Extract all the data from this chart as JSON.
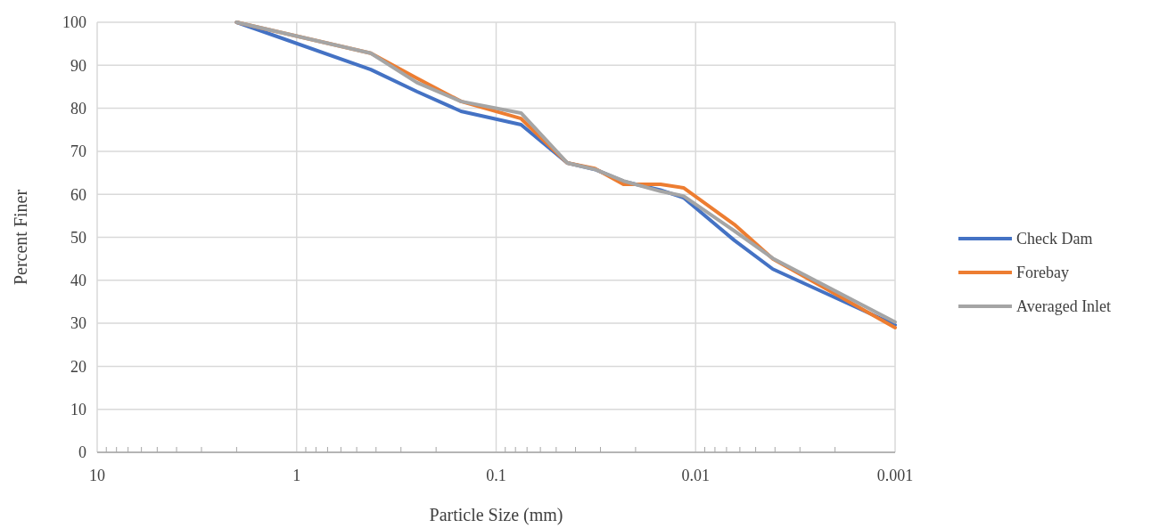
{
  "chart_data": {
    "type": "line",
    "xlabel": "Particle Size (mm)",
    "ylabel": "Percent Finer",
    "x": [
      2,
      0.425,
      0.25,
      0.15,
      0.075,
      0.044,
      0.032,
      0.023,
      0.015,
      0.0115,
      0.0064,
      0.0041,
      0.001
    ],
    "series": [
      {
        "name": "Check Dam",
        "color": "#4472c4",
        "values": [
          100,
          89,
          83.9,
          79.3,
          76.2,
          67.3,
          65.8,
          63,
          61,
          59.2,
          49.3,
          42.6,
          29.6
        ]
      },
      {
        "name": "Forebay",
        "color": "#ed7d31",
        "values": [
          100,
          92.8,
          87,
          81.6,
          77.6,
          67.3,
          66,
          62.3,
          62.3,
          61.5,
          53,
          45,
          29
        ]
      },
      {
        "name": "Averaged Inlet",
        "color": "#a5a5a5",
        "values": [
          100,
          92.8,
          86,
          81.6,
          78.9,
          67.3,
          65.8,
          63.1,
          60.7,
          59.6,
          51.5,
          45.1,
          30.3
        ]
      }
    ],
    "xlim": [
      10,
      0.001
    ],
    "xticks": [
      10,
      1,
      0.1,
      0.01,
      0.001
    ],
    "log": "x",
    "ylim": [
      0,
      100
    ],
    "yticks": [
      0,
      10,
      20,
      30,
      40,
      50,
      60,
      70,
      80,
      90,
      100
    ],
    "grid": true,
    "legend": "right",
    "marker": "none",
    "line_style": "solid"
  }
}
